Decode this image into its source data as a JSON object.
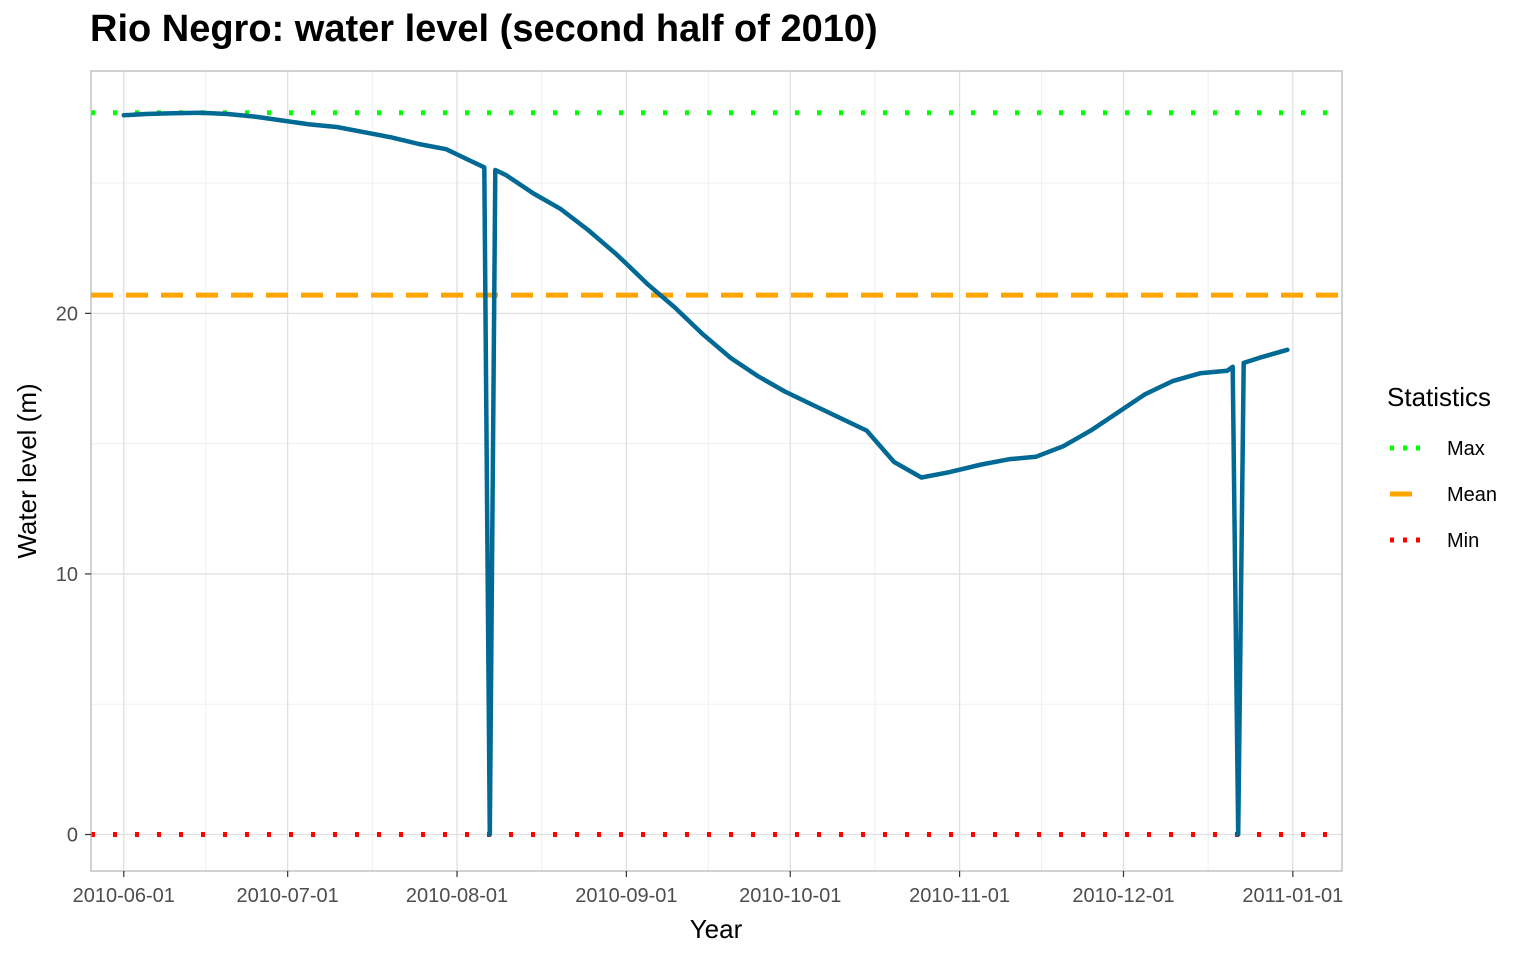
{
  "chart_data": {
    "type": "line",
    "title": "Rio Negro: water level (second half of 2010)",
    "xlabel": "Year",
    "ylabel": "Water level (m)",
    "x_ticks": [
      "2010-06-01",
      "2010-07-01",
      "2010-08-01",
      "2010-09-01",
      "2010-10-01",
      "2010-11-01",
      "2010-12-01",
      "2011-01-01"
    ],
    "y_ticks": [
      0,
      10,
      20
    ],
    "xlim": [
      "2010-05-26",
      "2011-01-10"
    ],
    "ylim": [
      -1.4,
      29.3
    ],
    "grid": true,
    "legend_position": "right",
    "series": [
      {
        "color": "#006994",
        "points": [
          [
            "2010-06-01",
            27.6
          ],
          [
            "2010-06-05",
            27.65
          ],
          [
            "2010-06-10",
            27.68
          ],
          [
            "2010-06-15",
            27.7
          ],
          [
            "2010-06-20",
            27.65
          ],
          [
            "2010-06-25",
            27.55
          ],
          [
            "2010-06-30",
            27.4
          ],
          [
            "2010-07-05",
            27.25
          ],
          [
            "2010-07-10",
            27.15
          ],
          [
            "2010-07-15",
            26.95
          ],
          [
            "2010-07-20",
            26.75
          ],
          [
            "2010-07-25",
            26.5
          ],
          [
            "2010-07-30",
            26.3
          ],
          [
            "2010-08-01",
            26.1
          ],
          [
            "2010-08-03",
            25.9
          ],
          [
            "2010-08-05",
            25.7
          ],
          [
            "2010-08-06",
            25.6
          ],
          [
            "2010-08-07",
            0.0
          ],
          [
            "2010-08-08",
            25.5
          ],
          [
            "2010-08-10",
            25.3
          ],
          [
            "2010-08-15",
            24.6
          ],
          [
            "2010-08-20",
            24.0
          ],
          [
            "2010-08-25",
            23.2
          ],
          [
            "2010-08-30",
            22.3
          ],
          [
            "2010-09-01",
            21.9
          ],
          [
            "2010-09-05",
            21.1
          ],
          [
            "2010-09-10",
            20.2
          ],
          [
            "2010-09-15",
            19.2
          ],
          [
            "2010-09-20",
            18.3
          ],
          [
            "2010-09-25",
            17.6
          ],
          [
            "2010-09-30",
            17.0
          ],
          [
            "2010-10-05",
            16.5
          ],
          [
            "2010-10-10",
            16.0
          ],
          [
            "2010-10-15",
            15.5
          ],
          [
            "2010-10-20",
            14.3
          ],
          [
            "2010-10-25",
            13.7
          ],
          [
            "2010-10-30",
            13.9
          ],
          [
            "2010-11-05",
            14.2
          ],
          [
            "2010-11-10",
            14.4
          ],
          [
            "2010-11-15",
            14.5
          ],
          [
            "2010-11-20",
            14.9
          ],
          [
            "2010-11-25",
            15.5
          ],
          [
            "2010-11-30",
            16.2
          ],
          [
            "2010-12-05",
            16.9
          ],
          [
            "2010-12-10",
            17.4
          ],
          [
            "2010-12-15",
            17.7
          ],
          [
            "2010-12-20",
            17.8
          ],
          [
            "2010-12-21",
            17.95
          ],
          [
            "2010-12-22",
            0.0
          ],
          [
            "2010-12-23",
            18.1
          ],
          [
            "2010-12-26",
            18.3
          ],
          [
            "2010-12-31",
            18.6
          ]
        ]
      }
    ],
    "reference_lines": [
      {
        "name": "Max",
        "value": 27.7,
        "color": "#00ff00",
        "style": "dotted"
      },
      {
        "name": "Mean",
        "value": 20.7,
        "color": "#ffa500",
        "style": "dashed"
      },
      {
        "name": "Min",
        "value": 0.0,
        "color": "#ff0000",
        "style": "dotted"
      }
    ],
    "legend": {
      "title": "Statistics",
      "items": [
        {
          "label": "Max",
          "color": "#00ff00",
          "style": "dotted"
        },
        {
          "label": "Mean",
          "color": "#ffa500",
          "style": "dashed"
        },
        {
          "label": "Min",
          "color": "#ff0000",
          "style": "dotted"
        }
      ]
    }
  }
}
